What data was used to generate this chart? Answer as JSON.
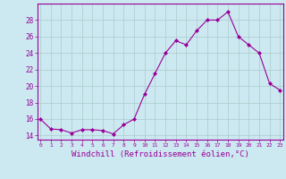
{
  "x": [
    0,
    1,
    2,
    3,
    4,
    5,
    6,
    7,
    8,
    9,
    10,
    11,
    12,
    13,
    14,
    15,
    16,
    17,
    18,
    19,
    20,
    21,
    22,
    23
  ],
  "y": [
    16.0,
    14.8,
    14.7,
    14.3,
    14.7,
    14.7,
    14.6,
    14.2,
    15.3,
    16.0,
    19.0,
    21.5,
    24.0,
    25.5,
    25.0,
    26.7,
    28.0,
    28.0,
    29.0,
    26.0,
    25.0,
    24.0,
    20.3,
    19.5
  ],
  "line_color": "#990099",
  "marker": "D",
  "markersize": 2.0,
  "linewidth": 0.8,
  "bg_color": "#cce8f0",
  "grid_color": "#aacccc",
  "xlabel": "Windchill (Refroidissement éolien,°C)",
  "xlabel_fontsize": 6.5,
  "xlabel_color": "#990099",
  "tick_color": "#990099",
  "ytick_labels": [
    "14",
    "16",
    "18",
    "20",
    "22",
    "24",
    "26",
    "28"
  ],
  "ytick_values": [
    14,
    16,
    18,
    20,
    22,
    24,
    26,
    28
  ],
  "xtick_values": [
    0,
    1,
    2,
    3,
    4,
    5,
    6,
    7,
    8,
    9,
    10,
    11,
    12,
    13,
    14,
    15,
    16,
    17,
    18,
    19,
    20,
    21,
    22,
    23
  ],
  "xlim": [
    -0.3,
    23.3
  ],
  "ylim": [
    13.5,
    30.0
  ],
  "spine_color": "#990099"
}
